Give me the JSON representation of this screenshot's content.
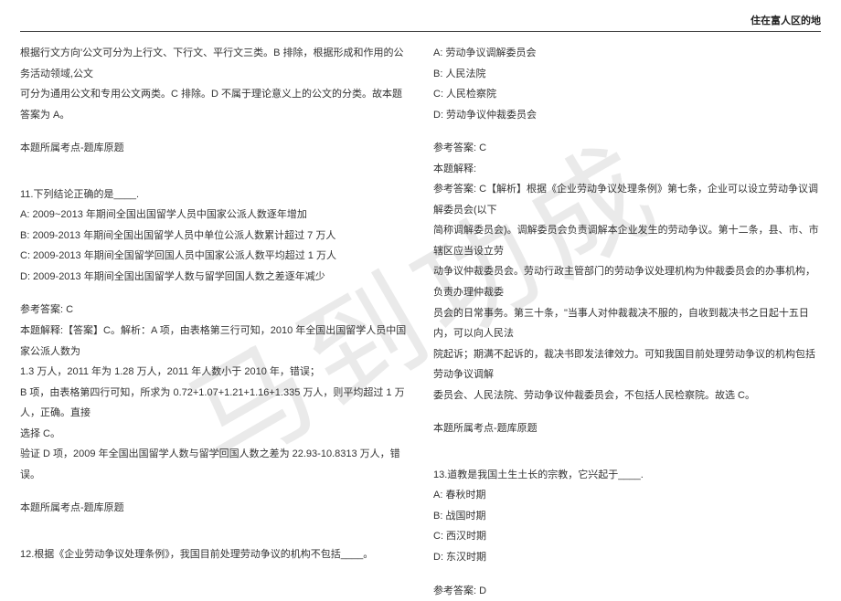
{
  "header_right": "住在富人区的地",
  "watermark": "马到功成",
  "left": {
    "p1": "根据行文方向'公文可分为上行文、下行文、平行文三类。B 排除，根据形成和作用的公务活动领域,公文",
    "p2": "可分为通用公文和专用公文两类。C 排除。D 不属于理论意义上的公文的分类。故本题答案为 A。",
    "p3": "本题所属考点-题库原题",
    "q11": "11.下列结论正确的是____.",
    "q11a": "A: 2009~2013 年期间全国出国留学人员中国家公派人数逐年增加",
    "q11b": "B: 2009-2013 年期间全国出国留学人员中单位公派人数累计超过 7 万人",
    "q11c": "C: 2009-2013 年期间全国留学回国人员中国家公派人数平均超过 1 万人",
    "q11d": "D: 2009-2013 年期间全国出国留学人数与留学回国人数之差逐年减少",
    "ans11": "参考答案: C",
    "exp11_1": "本题解释:【答案】C。解析：A 项，由表格第三行可知，2010 年全国出国留学人员中国家公派人数为",
    "exp11_2": "1.3 万人，2011 年为 1.28 万人，2011 年人数小于 2010 年，错误；",
    "exp11_3": "B 项，由表格第四行可知，所求为 0.72+1.07+1.21+1.16+1.335 万人，则平均超过 1 万人，正确。直接",
    "exp11_4": "选择 C。",
    "exp11_5": "验证 D 项，2009 年全国出国留学人数与留学回国人数之差为 22.93-10.8313 万人，错误。",
    "p_topic2": "本题所属考点-题库原题",
    "q12": "12.根据《企业劳动争议处理条例》，我国目前处理劳动争议的机构不包括____。"
  },
  "right": {
    "q12a": "A: 劳动争议调解委员会",
    "q12b": "B: 人民法院",
    "q12c": "C: 人民检察院",
    "q12d": "D: 劳动争议仲裁委员会",
    "ans12": "参考答案: C",
    "exp12_h": "本题解释:",
    "exp12_1": "参考答案: C【解析】根据《企业劳动争议处理条例》第七条，企业可以设立劳动争议调解委员会(以下",
    "exp12_2": "简称调解委员会)。调解委员会负责调解本企业发生的劳动争议。第十二条，县、市、市辖区应当设立劳",
    "exp12_3": "动争议仲裁委员会。劳动行政主管部门的劳动争议处理机构为仲裁委员会的办事机构，负责办理仲裁委",
    "exp12_4": "员会的日常事务。第三十条，\"当事人对仲裁裁决不服的，自收到裁决书之日起十五日内，可以向人民法",
    "exp12_5": "院起诉；期满不起诉的，裁决书即发法律效力。可知我国目前处理劳动争议的机构包括劳动争议调解",
    "exp12_6": "委员会、人民法院、劳动争议仲裁委员会，不包括人民检察院。故选 C。",
    "p_topic3": "本题所属考点-题库原题",
    "q13": "13.道教是我国土生土长的宗教，它兴起于____.",
    "q13a": "A: 春秋时期",
    "q13b": "B: 战国时期",
    "q13c": "C: 西汉时期",
    "q13d": "D: 东汉时期",
    "ans13": "参考答案: D"
  }
}
